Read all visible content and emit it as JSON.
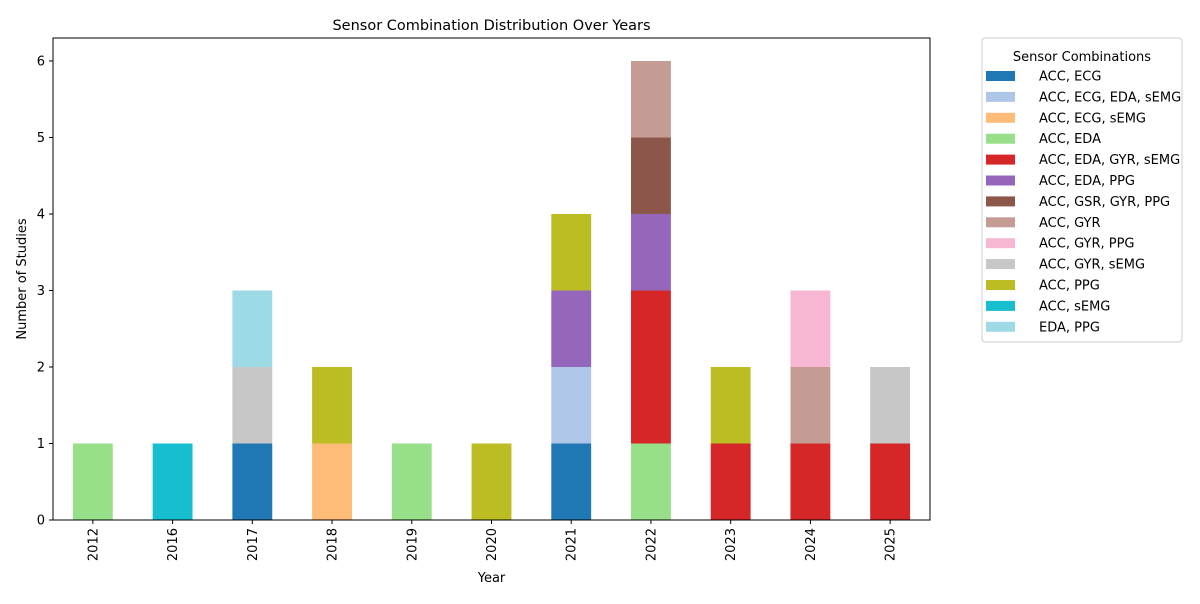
{
  "chart_data": {
    "type": "bar",
    "stacked": true,
    "title": "Sensor Combination Distribution Over Years",
    "xlabel": "Year",
    "ylabel": "Number of Studies",
    "ylim": [
      0,
      6.3
    ],
    "yticks": [
      0,
      1,
      2,
      3,
      4,
      5,
      6
    ],
    "grid": false,
    "legend_title": "Sensor Combinations",
    "legend_position": "outside-right",
    "categories": [
      "2012",
      "2016",
      "2017",
      "2018",
      "2019",
      "2020",
      "2021",
      "2022",
      "2023",
      "2024",
      "2025"
    ],
    "series": [
      {
        "name": "ACC, ECG",
        "color": "#1f77b4",
        "values": [
          0,
          0,
          1,
          0,
          0,
          0,
          1,
          0,
          0,
          0,
          0
        ]
      },
      {
        "name": "ACC, ECG, EDA, sEMG",
        "color": "#aec7e8",
        "values": [
          0,
          0,
          0,
          0,
          0,
          0,
          1,
          0,
          0,
          0,
          0
        ]
      },
      {
        "name": "ACC, ECG, sEMG",
        "color": "#ffbb78",
        "values": [
          0,
          0,
          0,
          1,
          0,
          0,
          0,
          0,
          0,
          0,
          0
        ]
      },
      {
        "name": "ACC, EDA",
        "color": "#98df8a",
        "values": [
          1,
          0,
          0,
          0,
          1,
          0,
          0,
          1,
          0,
          0,
          0
        ]
      },
      {
        "name": "ACC, EDA, GYR, sEMG",
        "color": "#d62728",
        "values": [
          0,
          0,
          0,
          0,
          0,
          0,
          0,
          2,
          1,
          1,
          1
        ]
      },
      {
        "name": "ACC, EDA, PPG",
        "color": "#9467bd",
        "values": [
          0,
          0,
          0,
          0,
          0,
          0,
          1,
          1,
          0,
          0,
          0
        ]
      },
      {
        "name": "ACC, GSR, GYR, PPG",
        "color": "#8c564b",
        "values": [
          0,
          0,
          0,
          0,
          0,
          0,
          0,
          1,
          0,
          0,
          0
        ]
      },
      {
        "name": "ACC, GYR",
        "color": "#c49c94",
        "values": [
          0,
          0,
          0,
          0,
          0,
          0,
          0,
          1,
          0,
          1,
          0
        ]
      },
      {
        "name": "ACC, GYR, PPG",
        "color": "#f7b6d2",
        "values": [
          0,
          0,
          0,
          0,
          0,
          0,
          0,
          0,
          0,
          1,
          0
        ]
      },
      {
        "name": "ACC, GYR, sEMG",
        "color": "#c7c7c7",
        "values": [
          0,
          0,
          1,
          0,
          0,
          0,
          0,
          0,
          0,
          0,
          1
        ]
      },
      {
        "name": "ACC, PPG",
        "color": "#bcbd22",
        "values": [
          0,
          0,
          0,
          1,
          0,
          1,
          1,
          0,
          1,
          0,
          0
        ]
      },
      {
        "name": "ACC, sEMG",
        "color": "#17becf",
        "values": [
          0,
          1,
          0,
          0,
          0,
          0,
          0,
          0,
          0,
          0,
          0
        ]
      },
      {
        "name": "EDA, PPG",
        "color": "#9edae5",
        "values": [
          0,
          0,
          1,
          0,
          0,
          0,
          0,
          0,
          0,
          0,
          0
        ]
      }
    ]
  }
}
